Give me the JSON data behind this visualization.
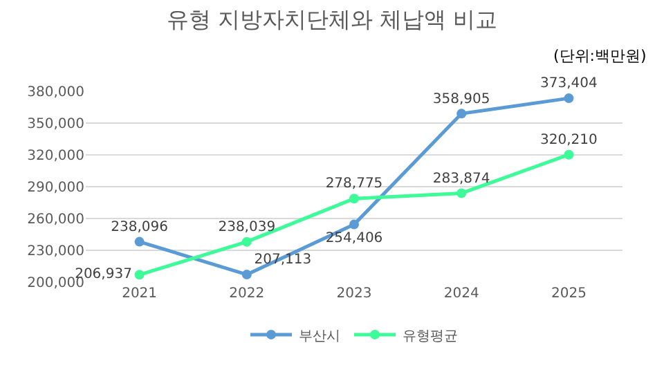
{
  "chart_data": {
    "type": "line",
    "title": "유형 지방자치단체와 체납액 비교",
    "subtitle": "(단위:백만원)",
    "categories": [
      "2021",
      "2022",
      "2023",
      "2024",
      "2025"
    ],
    "series": [
      {
        "name": "부산시",
        "color": "#5b9bd5",
        "values": [
          238096,
          207113,
          254406,
          358905,
          373404
        ],
        "value_labels": [
          "238,096",
          "207,113",
          "254,406",
          "358,905",
          "373,404"
        ]
      },
      {
        "name": "유형평균",
        "color": "#3cfb98",
        "values": [
          206937,
          238039,
          278775,
          283874,
          320210
        ],
        "value_labels": [
          "206,937",
          "238,039",
          "278,775",
          "283,874",
          "320,210"
        ]
      }
    ],
    "ylim": [
      200000,
      380000
    ],
    "yticks": [
      {
        "value": 200000,
        "label": "200,000"
      },
      {
        "value": 230000,
        "label": "230,000"
      },
      {
        "value": 260000,
        "label": "260,000"
      },
      {
        "value": 290000,
        "label": "290,000"
      },
      {
        "value": 320000,
        "label": "320,000"
      },
      {
        "value": 350000,
        "label": "350,000"
      },
      {
        "value": 380000,
        "label": "380,000"
      }
    ],
    "grid": "y",
    "legend": "bottom",
    "marker": "circle",
    "line_style": "solid"
  }
}
